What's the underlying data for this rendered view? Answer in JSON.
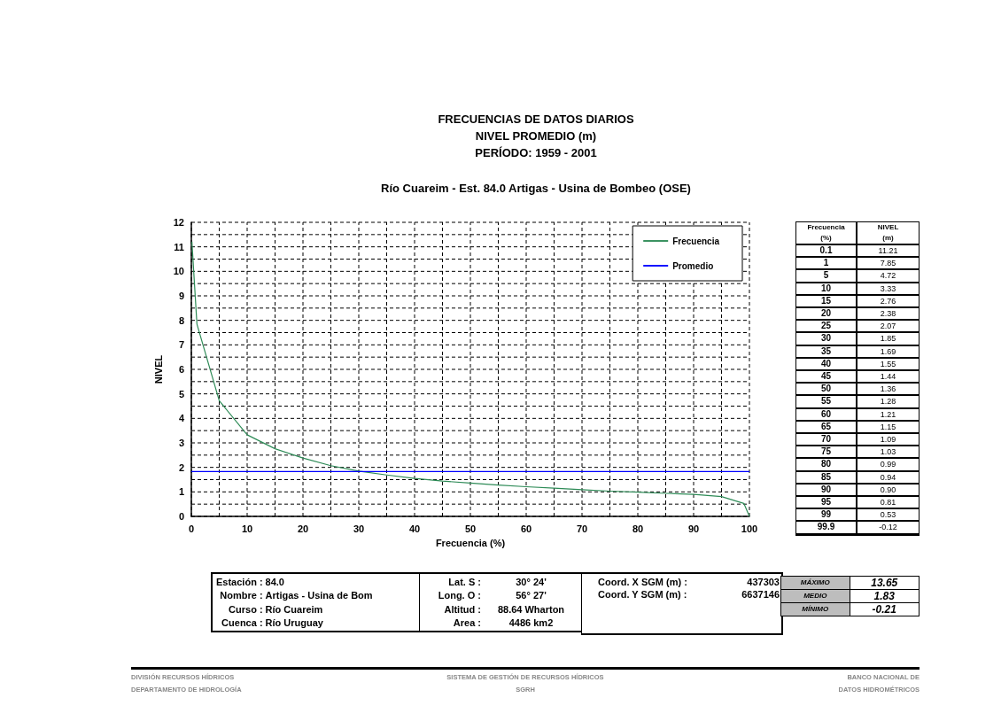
{
  "chart_data": [
    {
      "type": "line",
      "title": "FRECUENCIAS DE DATOS DIARIOS\nNIVEL PROMEDIO (m)\nPERÍODO: 1959 - 2001",
      "subtitle": "Río Cuareim - Est. 84.0 Artigas - Usina de Bombeo (OSE)",
      "xlabel": "Frecuencia (%)",
      "ylabel": "NIVEL",
      "series": [
        {
          "name": "Frecuencia",
          "color": "#2e8b57",
          "x": [
            0.1,
            1,
            5,
            10,
            15,
            20,
            25,
            30,
            35,
            40,
            45,
            50,
            55,
            60,
            65,
            70,
            75,
            80,
            85,
            90,
            95,
            99,
            100
          ],
          "values": [
            11.21,
            7.85,
            4.72,
            3.33,
            2.76,
            2.38,
            2.07,
            1.85,
            1.69,
            1.55,
            1.44,
            1.36,
            1.28,
            1.21,
            1.15,
            1.09,
            1.03,
            0.99,
            0.94,
            0.9,
            0.81,
            0.53,
            0
          ]
        },
        {
          "name": "Promedio",
          "color": "#0000ff",
          "x": [
            0,
            100
          ],
          "values": [
            1.83,
            1.83
          ]
        }
      ],
      "xlim": [
        0,
        100
      ],
      "xticks": [
        0,
        {
          "value": 5,
          "label": null
        },
        10,
        {
          "value": 15,
          "label": null
        },
        20,
        {
          "value": 25,
          "label": null
        },
        30,
        {
          "value": 35,
          "label": null
        },
        40,
        {
          "value": 45,
          "label": null
        },
        50,
        {
          "value": 55,
          "label": null
        },
        60,
        {
          "value": 65,
          "label": null
        },
        70,
        {
          "value": 75,
          "label": null
        },
        80,
        {
          "value": 85,
          "label": null
        },
        90,
        {
          "value": 95,
          "label": null
        },
        100
      ],
      "ylim": [
        0,
        12
      ],
      "yticks": [
        0,
        {
          "value": 0.5,
          "label": null
        },
        1,
        {
          "value": 1.5,
          "label": null
        },
        2,
        {
          "value": 2.5,
          "label": null
        },
        3,
        {
          "value": 3.5,
          "label": null
        },
        4,
        {
          "value": 4.5,
          "label": null
        },
        5,
        {
          "value": 5.5,
          "label": null
        },
        6,
        {
          "value": 6.5,
          "label": null
        },
        7,
        {
          "value": 7.5,
          "label": null
        },
        8,
        {
          "value": 8.5,
          "label": null
        },
        9,
        {
          "value": 9.5,
          "label": null
        },
        10,
        {
          "value": 10.5,
          "label": null
        },
        11,
        {
          "value": 11.5,
          "label": null
        },
        12
      ],
      "grid": true,
      "legend": "top right",
      "marker": "none",
      "line_style": "solid",
      "annotations": [
        "DIVISIÓN RECURSOS HÍDRICOS",
        "SISTEMA DE GESTIÓN DE RECURSOS HÍDRICOS",
        "BANCO NACIONAL DE",
        "DEPARTAMENTO DE HIDROLOGÍA",
        "SGRH",
        "DATOS HIDROMÉTRICOS"
      ]
    },
    {
      "type": "other",
      "annotations": [
        "Frecuencia\n(%)",
        "NIVEL\n(m)",
        "0.1",
        "11.21",
        "1",
        "7.85",
        "5",
        "4.72",
        "10",
        "3.33",
        "15",
        "2.76",
        "20",
        "2.38",
        "25",
        "2.07",
        "30",
        "1.85",
        "35",
        "1.69",
        "40",
        "1.55",
        "45",
        "1.44",
        "50",
        "1.36",
        "55",
        "1.28",
        "60",
        "1.21",
        "65",
        "1.15",
        "70",
        "1.09",
        "75",
        "1.03",
        "80",
        "0.99",
        "85",
        "0.94",
        "90",
        "0.90",
        "95",
        "0.81",
        "99",
        "0.53",
        "99.9",
        "-0.12"
      ]
    },
    {
      "type": "other",
      "annotations": [
        "Estación :",
        "84.0",
        "Nombre :",
        "Artigas - Usina de Bom",
        "Curso :",
        "Río Cuareim",
        "Cuenca :",
        "Río Uruguay"
      ]
    },
    {
      "type": "other",
      "annotations": [
        "Lat. S :",
        "30° 24'",
        "Long. O :",
        "56° 27'",
        "Altitud :",
        "88.64 Wharton",
        "Area :",
        "4486 km2"
      ]
    },
    {
      "type": "other",
      "annotations": [
        "Coord. X SGM (m) :",
        "437303",
        "Coord. Y SGM (m) :",
        "6637146"
      ]
    },
    {
      "type": "other",
      "annotations": [
        "MÁXIMO",
        "13.65",
        "MEDIO",
        "1.83",
        "MÍNIMO",
        "-0.21"
      ]
    }
  ]
}
